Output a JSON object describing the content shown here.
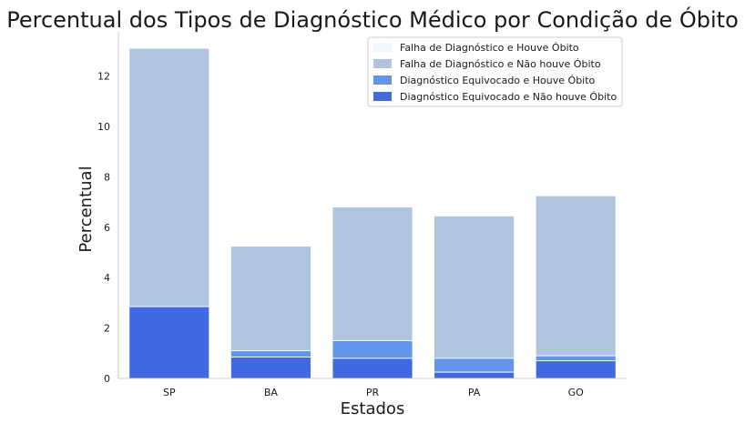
{
  "chart_data": {
    "type": "bar",
    "stacked": "overlay",
    "title": "Percentual dos Tipos de Diagnóstico Médico por Condição de Óbito",
    "xlabel": "Estados",
    "ylabel": "Percentual",
    "categories": [
      "SP",
      "BA",
      "PR",
      "PA",
      "GO"
    ],
    "ylim": [
      0,
      13.75
    ],
    "yticks": [
      0,
      2,
      4,
      6,
      8,
      10,
      12
    ],
    "grid": false,
    "legend_position": "top-right",
    "series": [
      {
        "name": "Falha de Diagnóstico e Houve Óbito",
        "color": "#f0f8ff",
        "values": [
          13.1,
          5.25,
          6.8,
          6.45,
          7.25
        ]
      },
      {
        "name": "Falha de Diagnóstico e Não houve Óbito",
        "color": "#b0c4de",
        "values": [
          13.1,
          5.25,
          6.8,
          6.45,
          7.25
        ]
      },
      {
        "name": "Diagnóstico Equivocado e Houve Óbito",
        "color": "#6495ed",
        "values": [
          2.85,
          1.1,
          1.5,
          0.8,
          0.9
        ]
      },
      {
        "name": "Diagnóstico Equivocado e Não houve Óbito",
        "color": "#4169e1",
        "values": [
          2.85,
          0.85,
          0.8,
          0.25,
          0.7
        ]
      }
    ]
  }
}
